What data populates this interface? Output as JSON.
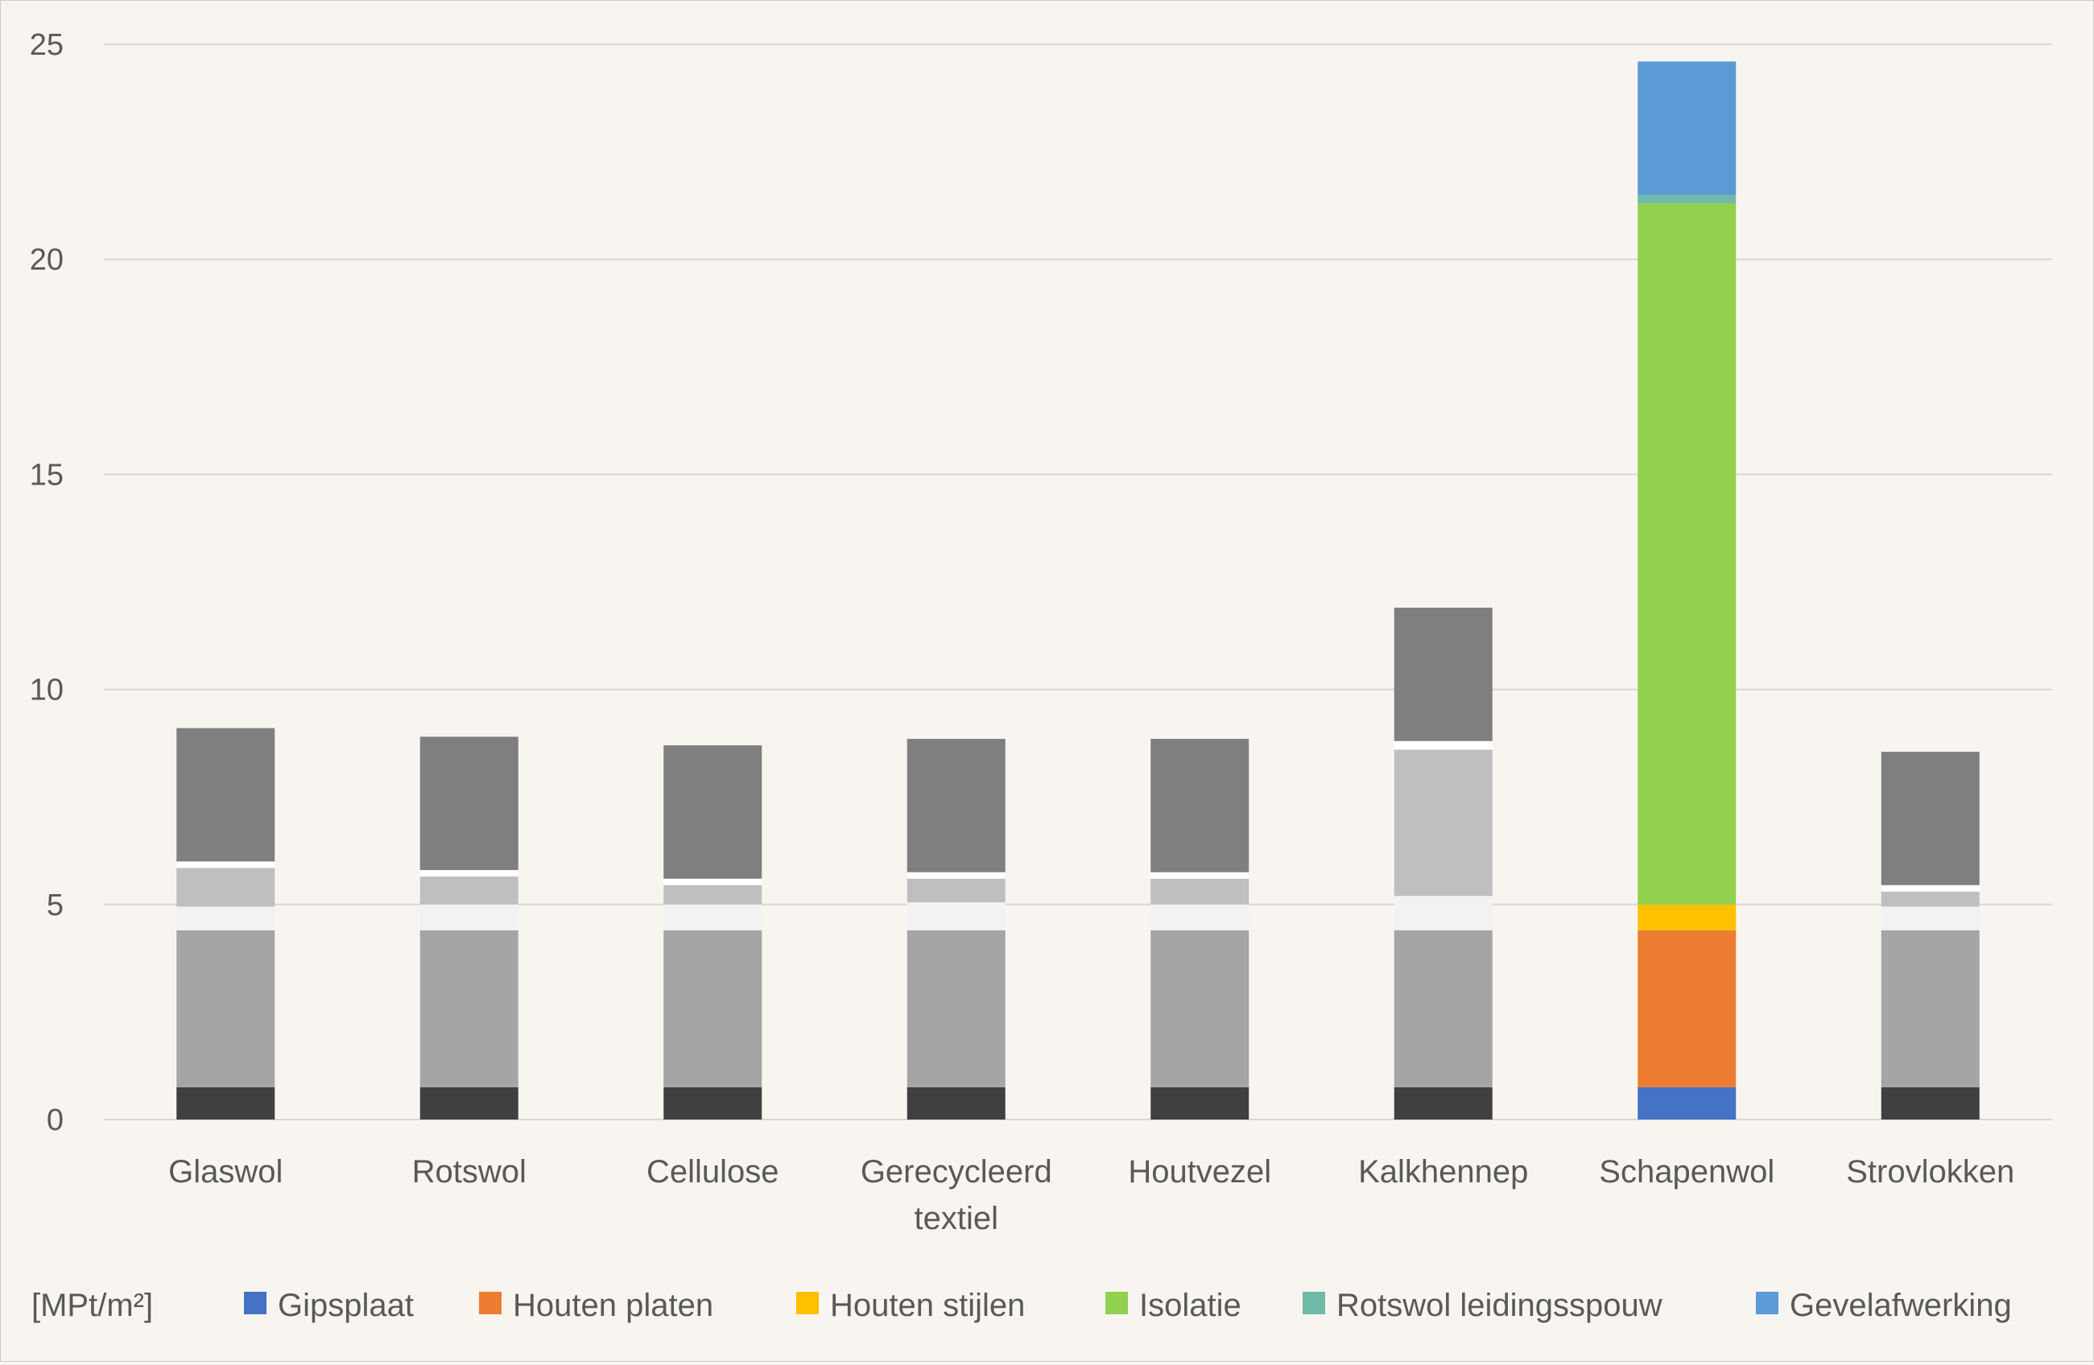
{
  "chart_data": {
    "type": "bar",
    "stacked": true,
    "categories": [
      "Glaswol",
      "Rotswol",
      "Cellulose",
      "Gerecycleerd textiel",
      "Houtvezel",
      "Kalkhennep",
      "Schapenwol",
      "Strovlokken"
    ],
    "unit_label": "[MPt/m²]",
    "ylim": [
      0,
      25
    ],
    "yticks": [
      0,
      5,
      10,
      15,
      20,
      25
    ],
    "grid": true,
    "legend_position": "bottom",
    "highlighted_category": "Schapenwol",
    "series": [
      {
        "name": "Gipsplaat",
        "color": "#4472c4",
        "muted_color": "#404040",
        "values": [
          0.75,
          0.75,
          0.75,
          0.75,
          0.75,
          0.75,
          0.75,
          0.75
        ]
      },
      {
        "name": "Houten platen",
        "color": "#ed7d31",
        "muted_color": "#a5a5a5",
        "values": [
          3.65,
          3.65,
          3.65,
          3.65,
          3.65,
          3.65,
          3.65,
          3.65
        ]
      },
      {
        "name": "Houten stijlen",
        "color": "#ffc000",
        "muted_color": "#f2f2f2",
        "values": [
          0.55,
          0.6,
          0.6,
          0.65,
          0.6,
          0.8,
          0.6,
          0.55
        ]
      },
      {
        "name": "Isolatie",
        "color": "#92d050",
        "muted_color": "#bfbfbf",
        "values": [
          0.9,
          0.65,
          0.45,
          0.55,
          0.6,
          3.4,
          16.3,
          0.35
        ]
      },
      {
        "name": "Rotswol leidingsspouw",
        "color": "#70b8a8",
        "muted_color": "#ffffff",
        "values": [
          0.15,
          0.15,
          0.15,
          0.15,
          0.15,
          0.2,
          0.2,
          0.15
        ]
      },
      {
        "name": "Gevelafwerking",
        "color": "#5b9bd5",
        "muted_color": "#7f7f7f",
        "values": [
          3.1,
          3.1,
          3.1,
          3.1,
          3.1,
          3.1,
          3.1,
          3.1
        ]
      }
    ]
  }
}
